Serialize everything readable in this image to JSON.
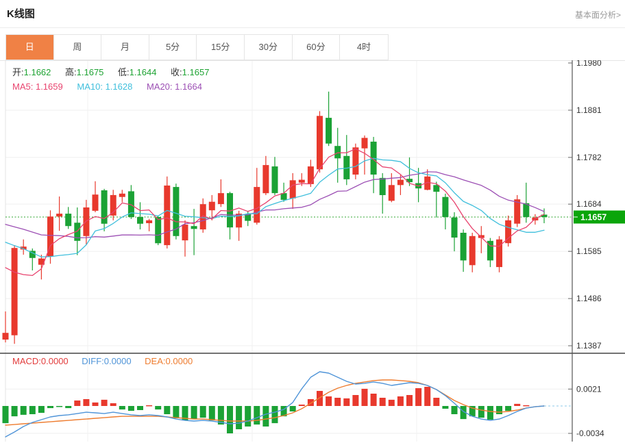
{
  "header": {
    "title": "K线图",
    "link_label": "基本面分析>"
  },
  "tabs": {
    "items": [
      "日",
      "周",
      "月",
      "5分",
      "15分",
      "30分",
      "60分",
      "4时"
    ],
    "selected": "日",
    "selected_index": 0
  },
  "kline_legend": {
    "open_label": "开:",
    "open_value": "1.1662",
    "high_label": "高:",
    "high_value": "1.1675",
    "low_label": "低:",
    "low_value": "1.1644",
    "close_label": "收:",
    "close_value": "1.1657",
    "ma5_label": "MA5:",
    "ma5_value": "1.1659",
    "ma10_label": "MA10:",
    "ma10_value": "1.1628",
    "ma20_label": "MA20:",
    "ma20_value": "1.1664"
  },
  "macd_legend": {
    "macd_label": "MACD:",
    "macd_value": "0.0000",
    "diff_label": "DIFF:",
    "diff_value": "0.0000",
    "dea_label": "DEA:",
    "dea_value": "0.0000"
  },
  "price_axis": {
    "ticks": [
      "1.1980",
      "1.1881",
      "1.1782",
      "1.1684",
      "1.1585",
      "1.1486",
      "1.1387"
    ],
    "current_price_label": "1.1657"
  },
  "macd_axis": {
    "ticks": [
      "0.0021",
      "-0.0034"
    ]
  },
  "colors": {
    "up_red": "#e8392d",
    "down_green": "#1ba235",
    "badge_green": "#0ba50b",
    "ma5_pink": "#e8436e",
    "ma10_cyan": "#3fbfdc",
    "ma20_purple": "#9c4fb4",
    "diff_blue": "#4f94d8",
    "dea_orange": "#ee7c2f",
    "dotted_line_green": "#2ba32b",
    "tab_orange": "#f08145",
    "grid": "#efefef",
    "axis_line": "#555555",
    "divider": "#444444",
    "axis_text": "#333333"
  },
  "chart_data": [
    {
      "type": "candlestick",
      "title": "K线图",
      "period": "日",
      "convention": "red=up, green=down",
      "ylim": [
        1.1387,
        1.198
      ],
      "yticks": [
        1.198,
        1.1881,
        1.1782,
        1.1684,
        1.1585,
        1.1486,
        1.1387
      ],
      "current_price": 1.1657,
      "ohlc_legend": {
        "open": 1.1662,
        "high": 1.1675,
        "low": 1.1644,
        "close": 1.1657
      },
      "ma_legend": {
        "MA5": 1.1659,
        "MA10": 1.1628,
        "MA20": 1.1664
      },
      "ma_seed_closes": [
        1.17,
        1.1695,
        1.169,
        1.1685,
        1.168,
        1.1675,
        1.167,
        1.1668,
        1.1666,
        1.1664,
        1.1662,
        1.166,
        1.1658,
        1.1656,
        1.165,
        1.164,
        1.162,
        1.158,
        1.15
      ],
      "candles": [
        [
          1.14,
          1.1459,
          1.1394,
          1.1414
        ],
        [
          1.1409,
          1.1598,
          1.1391,
          1.1592
        ],
        [
          1.1589,
          1.161,
          1.1578,
          1.1595
        ],
        [
          1.1586,
          1.1591,
          1.1545,
          1.1571
        ],
        [
          1.1557,
          1.1578,
          1.1526,
          1.157
        ],
        [
          1.1574,
          1.1671,
          1.1559,
          1.1658
        ],
        [
          1.1658,
          1.17,
          1.1628,
          1.1664
        ],
        [
          1.1664,
          1.1678,
          1.1632,
          1.1638
        ],
        [
          1.1645,
          1.1677,
          1.1577,
          1.1607
        ],
        [
          1.1617,
          1.1693,
          1.1598,
          1.1677
        ],
        [
          1.167,
          1.1732,
          1.1667,
          1.1704
        ],
        [
          1.1713,
          1.1716,
          1.1627,
          1.1643
        ],
        [
          1.166,
          1.1714,
          1.165,
          1.1703
        ],
        [
          1.1699,
          1.1714,
          1.1688,
          1.1706
        ],
        [
          1.1711,
          1.1724,
          1.1653,
          1.1657
        ],
        [
          1.1657,
          1.1688,
          1.1631,
          1.1643
        ],
        [
          1.1644,
          1.1653,
          1.1627,
          1.165
        ],
        [
          1.1657,
          1.166,
          1.1598,
          1.1602
        ],
        [
          1.1598,
          1.1742,
          1.1591,
          1.1723
        ],
        [
          1.172,
          1.1727,
          1.161,
          1.1617
        ],
        [
          1.1608,
          1.165,
          1.1574,
          1.1641
        ],
        [
          1.1638,
          1.1674,
          1.1577,
          1.1632
        ],
        [
          1.1631,
          1.1696,
          1.1624,
          1.1684
        ],
        [
          1.1671,
          1.1703,
          1.165,
          1.1689
        ],
        [
          1.1684,
          1.1736,
          1.1678,
          1.1707
        ],
        [
          1.1707,
          1.171,
          1.161,
          1.1635
        ],
        [
          1.1635,
          1.167,
          1.1607,
          1.1664
        ],
        [
          1.1663,
          1.167,
          1.1638,
          1.1649
        ],
        [
          1.1645,
          1.176,
          1.1641,
          1.172
        ],
        [
          1.1707,
          1.1785,
          1.1703,
          1.1766
        ],
        [
          1.1763,
          1.1783,
          1.1703,
          1.1707
        ],
        [
          1.1707,
          1.1729,
          1.1689,
          1.1693
        ],
        [
          1.1696,
          1.1749,
          1.1674,
          1.1734
        ],
        [
          1.1729,
          1.1749,
          1.1722,
          1.1735
        ],
        [
          1.1726,
          1.1777,
          1.172,
          1.1763
        ],
        [
          1.1757,
          1.1879,
          1.175,
          1.1869
        ],
        [
          1.1865,
          1.192,
          1.1806,
          1.1811
        ],
        [
          1.1806,
          1.1844,
          1.1729,
          1.178
        ],
        [
          1.1785,
          1.1829,
          1.1724,
          1.1736
        ],
        [
          1.1746,
          1.1811,
          1.1736,
          1.1803
        ],
        [
          1.1801,
          1.1828,
          1.1746,
          1.1823
        ],
        [
          1.1815,
          1.1825,
          1.1707,
          1.1746
        ],
        [
          1.1739,
          1.1749,
          1.1664,
          1.1703
        ],
        [
          1.1691,
          1.1749,
          1.1688,
          1.1724
        ],
        [
          1.1724,
          1.1745,
          1.1703,
          1.1735
        ],
        [
          1.1737,
          1.1782,
          1.1722,
          1.173
        ],
        [
          1.1728,
          1.176,
          1.1688,
          1.1717
        ],
        [
          1.1714,
          1.1757,
          1.1713,
          1.1742
        ],
        [
          1.1724,
          1.1731,
          1.1656,
          1.171
        ],
        [
          1.1699,
          1.1706,
          1.1631,
          1.1657
        ],
        [
          1.1656,
          1.1667,
          1.1585,
          1.1614
        ],
        [
          1.1624,
          1.1631,
          1.1542,
          1.1566
        ],
        [
          1.1556,
          1.1624,
          1.1541,
          1.1617
        ],
        [
          1.1613,
          1.1638,
          1.1581,
          1.1619
        ],
        [
          1.1607,
          1.1613,
          1.1552,
          1.1566
        ],
        [
          1.1552,
          1.1617,
          1.1541,
          1.161
        ],
        [
          1.1602,
          1.166,
          1.1595,
          1.165
        ],
        [
          1.1643,
          1.1703,
          1.1636,
          1.1694
        ],
        [
          1.1686,
          1.1729,
          1.1645,
          1.1657
        ],
        [
          1.165,
          1.1663,
          1.1641,
          1.1656
        ],
        [
          1.1662,
          1.1675,
          1.1644,
          1.1657
        ]
      ]
    },
    {
      "type": "bar",
      "title": "MACD",
      "yticks": [
        0.0021,
        -0.0034
      ],
      "zero_dashed_extension": true,
      "series": [
        {
          "name": "MACD",
          "values": [
            -0.00213,
            -0.00128,
            -0.0011,
            -0.00102,
            -0.00085,
            -0.00026,
            -9e-05,
            -0.00026,
            0.00068,
            0.00085,
            0.00043,
            0.00077,
            0.00034,
            -0.00043,
            -0.0006,
            -0.00051,
            9e-05,
            -0.00043,
            -0.00102,
            -0.00153,
            -0.00179,
            -0.00162,
            -0.00145,
            -0.00179,
            -0.0023,
            -0.0034,
            -0.00289,
            -0.00255,
            -0.0023,
            -0.00255,
            -0.00213,
            -0.00128,
            -0.00068,
            0.00017,
            0.00085,
            0.00187,
            0.00119,
            0.00102,
            0.00094,
            0.00136,
            0.00213,
            0.00153,
            0.00102,
            0.00077,
            0.00119,
            0.00136,
            0.00221,
            0.00238,
            0.00102,
            -0.00034,
            -0.00102,
            -0.00162,
            -0.00128,
            -0.00145,
            -0.0017,
            -0.00102,
            -0.0006,
            0.00026,
            9e-05,
            0.0,
            0.0
          ]
        },
        {
          "name": "DIFF",
          "values": [
            -0.00383,
            -0.00323,
            -0.00255,
            -0.00204,
            -0.0017,
            -0.00136,
            -0.00119,
            -0.0011,
            -0.00094,
            -0.00077,
            -0.00085,
            -0.00094,
            -0.00077,
            -0.00094,
            -0.0011,
            -0.00119,
            -0.0011,
            -0.00119,
            -0.00136,
            -0.00162,
            -0.00179,
            -0.00187,
            -0.00179,
            -0.00187,
            -0.00204,
            -0.00221,
            -0.00213,
            -0.00187,
            -0.00145,
            -0.00102,
            -0.00077,
            -0.00043,
            0.00043,
            0.00213,
            0.00357,
            0.00425,
            0.00408,
            0.00357,
            0.00306,
            0.00272,
            0.00281,
            0.00298,
            0.00281,
            0.00255,
            0.00272,
            0.00289,
            0.00281,
            0.00255,
            0.00204,
            0.00128,
            0.00034,
            -0.00068,
            -0.00128,
            -0.00162,
            -0.00179,
            -0.00162,
            -0.00119,
            -0.00068,
            -0.00026,
            -9e-05,
            0.0
          ]
        },
        {
          "name": "DEA",
          "values": [
            -0.00238,
            -0.0023,
            -0.00221,
            -0.00213,
            -0.00204,
            -0.00196,
            -0.00187,
            -0.00179,
            -0.0017,
            -0.00162,
            -0.00153,
            -0.00145,
            -0.00136,
            -0.00128,
            -0.00128,
            -0.00128,
            -0.00128,
            -0.00128,
            -0.00136,
            -0.00145,
            -0.00153,
            -0.00162,
            -0.00162,
            -0.0017,
            -0.00179,
            -0.00187,
            -0.00187,
            -0.00187,
            -0.00179,
            -0.00162,
            -0.00145,
            -0.00119,
            -0.00085,
            -0.00034,
            0.00034,
            0.00102,
            0.0017,
            0.00221,
            0.00255,
            0.00281,
            0.00298,
            0.00315,
            0.00323,
            0.00323,
            0.00315,
            0.00306,
            0.00289,
            0.00255,
            0.00204,
            0.00136,
            0.00068,
            0.00017,
            -0.00026,
            -0.00051,
            -0.00068,
            -0.00077,
            -0.00068,
            -0.00051,
            -0.00026,
            -9e-05,
            0.0
          ]
        }
      ]
    }
  ]
}
